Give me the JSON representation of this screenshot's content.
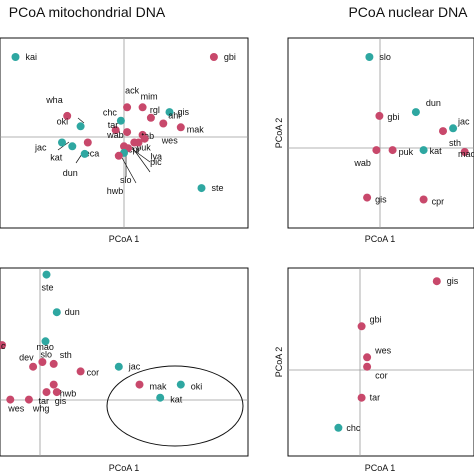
{
  "colors": {
    "mitochondrial": "#c8486b",
    "other": "#2ea7a1",
    "frame": "#111111",
    "zero_line": "#9a9a9a"
  },
  "chart_data": [
    {
      "type": "scatter",
      "title": "PCoA mitochondrial DNA",
      "xlabel": "PCoA 1",
      "ylabel": "",
      "xlim": [
        -1.2,
        1.2
      ],
      "ylim": [
        -1.0,
        1.0
      ],
      "zero_lines": true,
      "points": [
        {
          "label": "kai",
          "x": -1.05,
          "y": 0.8,
          "group": "other"
        },
        {
          "label": "gbi",
          "x": 0.87,
          "y": 0.8,
          "group": "mitochondrial"
        },
        {
          "label": "ack",
          "x": 0.03,
          "y": 0.27,
          "group": "mitochondrial"
        },
        {
          "label": "mim",
          "x": 0.18,
          "y": 0.27,
          "group": "mitochondrial"
        },
        {
          "label": "gis",
          "x": 0.44,
          "y": 0.22,
          "group": "other"
        },
        {
          "label": "rgl",
          "x": 0.26,
          "y": 0.16,
          "group": "mitochondrial"
        },
        {
          "label": "chc",
          "x": -0.03,
          "y": 0.13,
          "group": "other"
        },
        {
          "label": "wha",
          "x": -0.55,
          "y": 0.18,
          "group": "mitochondrial"
        },
        {
          "label": "ahi",
          "x": 0.38,
          "y": 0.1,
          "group": "mitochondrial"
        },
        {
          "label": "mak",
          "x": 0.55,
          "y": 0.06,
          "group": "mitochondrial"
        },
        {
          "label": "oki",
          "x": -0.42,
          "y": 0.07,
          "group": "other"
        },
        {
          "label": "tar",
          "x": -0.08,
          "y": 0.03,
          "group": "mitochondrial"
        },
        {
          "label": "wab",
          "x": 0.03,
          "y": 0.01,
          "group": "mitochondrial"
        },
        {
          "label": "tab",
          "x": 0.18,
          "y": -0.02,
          "group": "mitochondrial"
        },
        {
          "label": "wes",
          "x": 0.2,
          "y": -0.06,
          "group": "mitochondrial"
        },
        {
          "label": "puk",
          "x": 0.1,
          "y": -0.1,
          "group": "mitochondrial"
        },
        {
          "label": "lya",
          "x": 0.14,
          "y": -0.1,
          "group": "mitochondrial"
        },
        {
          "label": "jac",
          "x": -0.6,
          "y": -0.1,
          "group": "other"
        },
        {
          "label": "eca",
          "x": -0.35,
          "y": -0.1,
          "group": "mitochondrial"
        },
        {
          "label": "kat",
          "x": -0.5,
          "y": -0.14,
          "group": "other"
        },
        {
          "label": "cpr",
          "x": 0.0,
          "y": -0.14,
          "group": "mitochondrial"
        },
        {
          "label": "pic",
          "x": 0.04,
          "y": -0.16,
          "group": "mitochondrial"
        },
        {
          "label": "dun",
          "x": -0.38,
          "y": -0.22,
          "group": "other"
        },
        {
          "label": "slo",
          "x": 0.0,
          "y": -0.21,
          "group": "other"
        },
        {
          "label": "hwb",
          "x": -0.05,
          "y": -0.24,
          "group": "mitochondrial"
        },
        {
          "label": "ste",
          "x": 0.75,
          "y": -0.58,
          "group": "other"
        }
      ]
    },
    {
      "type": "scatter",
      "title": "PCoA nuclear DNA",
      "xlabel": "PCoA 1",
      "ylabel": "PCoA 2",
      "xlim": [
        -1.2,
        1.2
      ],
      "ylim": [
        -1.0,
        1.0
      ],
      "zero_lines": true,
      "points": [
        {
          "label": "slo",
          "x": -0.15,
          "y": 0.8,
          "group": "other"
        },
        {
          "label": "gbi",
          "x": -0.02,
          "y": 0.18,
          "group": "mitochondrial"
        },
        {
          "label": "dun",
          "x": 0.45,
          "y": 0.22,
          "group": "other"
        },
        {
          "label": "jac",
          "x": 0.93,
          "y": 0.05,
          "group": "other"
        },
        {
          "label": "sth",
          "x": 0.8,
          "y": 0.02,
          "group": "mitochondrial"
        },
        {
          "label": "wab",
          "x": -0.06,
          "y": -0.18,
          "group": "mitochondrial"
        },
        {
          "label": "puk",
          "x": 0.15,
          "y": -0.18,
          "group": "mitochondrial"
        },
        {
          "label": "kat",
          "x": 0.55,
          "y": -0.18,
          "group": "other"
        },
        {
          "label": "mao",
          "x": 1.08,
          "y": -0.2,
          "group": "mitochondrial"
        },
        {
          "label": "gis",
          "x": -0.18,
          "y": -0.68,
          "group": "mitochondrial"
        },
        {
          "label": "cpr",
          "x": 0.55,
          "y": -0.7,
          "group": "mitochondrial"
        }
      ]
    },
    {
      "type": "scatter",
      "title": "",
      "xlabel": "PCoA 1",
      "ylabel": "",
      "xlim": [
        -1.2,
        1.2
      ],
      "ylim": [
        -1.0,
        1.0
      ],
      "zero_lines": true,
      "points": [
        {
          "label": "ste",
          "x": -0.75,
          "y": 0.93,
          "group": "other"
        },
        {
          "label": "dun",
          "x": -0.65,
          "y": 0.53,
          "group": "other"
        },
        {
          "label": "slo",
          "x": -0.76,
          "y": 0.22,
          "group": "other"
        },
        {
          "label": "c",
          "x": -1.18,
          "y": 0.18,
          "group": "mitochondrial"
        },
        {
          "label": "dev",
          "x": -0.88,
          "y": -0.05,
          "group": "mitochondrial"
        },
        {
          "label": "mao",
          "x": -0.79,
          "y": 0.0,
          "group": "mitochondrial"
        },
        {
          "label": "sth",
          "x": -0.68,
          "y": -0.02,
          "group": "mitochondrial"
        },
        {
          "label": "cor",
          "x": -0.42,
          "y": -0.1,
          "group": "mitochondrial"
        },
        {
          "label": "jac",
          "x": -0.05,
          "y": -0.05,
          "group": "other"
        },
        {
          "label": "hwb",
          "x": -0.68,
          "y": -0.24,
          "group": "mitochondrial"
        },
        {
          "label": "mak",
          "x": 0.15,
          "y": -0.24,
          "group": "mitochondrial"
        },
        {
          "label": "oki",
          "x": 0.55,
          "y": -0.24,
          "group": "other"
        },
        {
          "label": "kat",
          "x": 0.35,
          "y": -0.38,
          "group": "other"
        },
        {
          "label": "wes",
          "x": -1.1,
          "y": -0.4,
          "group": "mitochondrial"
        },
        {
          "label": "whg",
          "x": -0.92,
          "y": -0.4,
          "group": "mitochondrial"
        },
        {
          "label": "tar",
          "x": -0.75,
          "y": -0.32,
          "group": "mitochondrial"
        },
        {
          "label": "gis",
          "x": -0.65,
          "y": -0.32,
          "group": "mitochondrial"
        }
      ]
    },
    {
      "type": "scatter",
      "title": "",
      "xlabel": "PCoA 1",
      "ylabel": "PCoA 2",
      "xlim": [
        -1.2,
        1.2
      ],
      "ylim": [
        -1.0,
        1.0
      ],
      "zero_lines": true,
      "points": [
        {
          "label": "gis",
          "x": 0.72,
          "y": 0.86,
          "group": "mitochondrial"
        },
        {
          "label": "gbi",
          "x": -0.25,
          "y": 0.38,
          "group": "mitochondrial"
        },
        {
          "label": "wes",
          "x": -0.18,
          "y": 0.05,
          "group": "mitochondrial"
        },
        {
          "label": "cor",
          "x": -0.18,
          "y": -0.05,
          "group": "mitochondrial"
        },
        {
          "label": "tar",
          "x": -0.25,
          "y": -0.38,
          "group": "mitochondrial"
        },
        {
          "label": "chc",
          "x": -0.55,
          "y": -0.7,
          "group": "other"
        }
      ]
    }
  ]
}
